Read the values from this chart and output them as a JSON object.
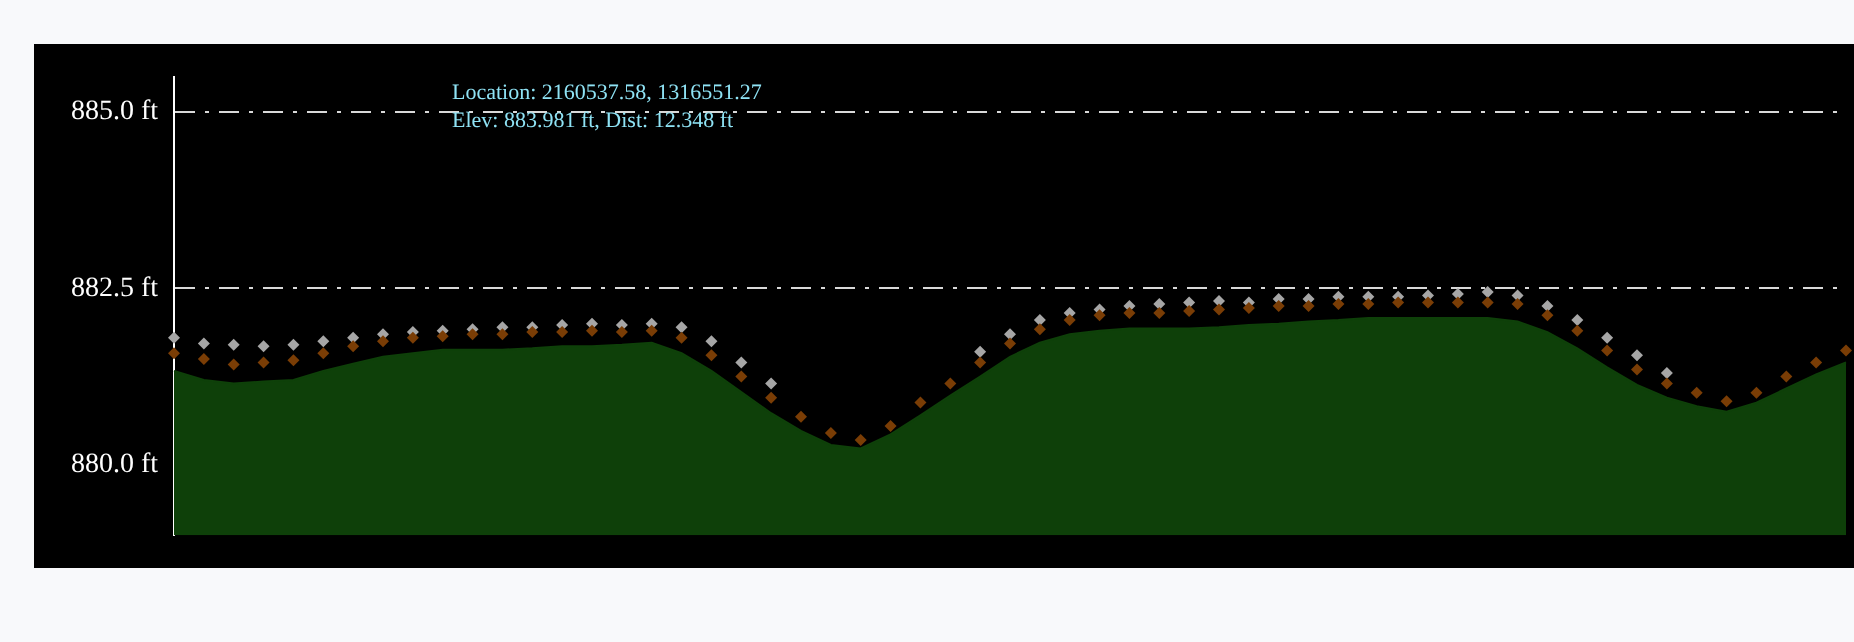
{
  "chart_data": {
    "type": "area",
    "categories": [
      null,
      null,
      null,
      null,
      null,
      null,
      null,
      null,
      null,
      null,
      null,
      null,
      null,
      null,
      null,
      null,
      null,
      null,
      null,
      null,
      null,
      null,
      null,
      null,
      null,
      null,
      null,
      null,
      null,
      null,
      null,
      null,
      null,
      null,
      null,
      null,
      null,
      null,
      null,
      null,
      null,
      null,
      null,
      null,
      null,
      null,
      null,
      null,
      null,
      null,
      null,
      null,
      null,
      null,
      null,
      null,
      null
    ],
    "series": [
      {
        "color": "#0e4009",
        "values": [
          881.33,
          881.2,
          881.15,
          881.18,
          881.2,
          881.33,
          881.43,
          881.53,
          881.58,
          881.63,
          881.63,
          881.63,
          881.65,
          881.68,
          881.68,
          881.7,
          881.73,
          881.58,
          881.33,
          881.03,
          880.73,
          880.48,
          880.28,
          880.23,
          880.43,
          880.7,
          880.98,
          881.25,
          881.53,
          881.73,
          881.85,
          881.9,
          881.93,
          881.93,
          881.93,
          881.95,
          881.98,
          882.0,
          882.03,
          882.05,
          882.08,
          882.08,
          882.08,
          882.08,
          882.08,
          882.03,
          881.88,
          881.65,
          881.38,
          881.13,
          880.95,
          880.83,
          880.75,
          880.88,
          881.08,
          881.28,
          881.45
        ]
      },
      {
        "type": "scatter",
        "marker": "diamond",
        "color": "#a6a6a6",
        "values": [
          881.8,
          881.72,
          881.7,
          881.68,
          881.7,
          881.75,
          881.8,
          881.85,
          881.88,
          881.9,
          881.92,
          881.95,
          881.95,
          881.98,
          882.0,
          881.98,
          882.0,
          881.95,
          881.75,
          881.45,
          881.15,
          null,
          null,
          null,
          null,
          null,
          null,
          881.6,
          881.85,
          882.05,
          882.15,
          882.2,
          882.25,
          882.28,
          882.3,
          882.32,
          882.3,
          882.35,
          882.35,
          882.38,
          882.38,
          882.38,
          882.4,
          882.42,
          882.45,
          882.4,
          882.25,
          882.05,
          881.8,
          881.55,
          881.3,
          null,
          null,
          null,
          null,
          null,
          null
        ]
      },
      {
        "type": "scatter",
        "marker": "diamond",
        "color": "#7a3d05",
        "values": [
          881.58,
          881.5,
          881.42,
          881.45,
          881.48,
          881.58,
          881.68,
          881.75,
          881.8,
          881.82,
          881.85,
          881.85,
          881.88,
          881.88,
          881.9,
          881.88,
          881.9,
          881.8,
          881.55,
          881.25,
          880.95,
          880.68,
          880.45,
          880.35,
          880.55,
          880.88,
          881.15,
          881.45,
          881.72,
          881.92,
          882.05,
          882.12,
          882.15,
          882.15,
          882.18,
          882.2,
          882.22,
          882.25,
          882.25,
          882.28,
          882.28,
          882.3,
          882.3,
          882.3,
          882.3,
          882.28,
          882.12,
          881.9,
          881.62,
          881.35,
          881.15,
          881.02,
          880.9,
          881.02,
          881.25,
          881.45,
          881.62
        ]
      }
    ],
    "ylim": [
      879,
      885.5
    ],
    "yticks": [
      {
        "value": 880,
        "label": "880.0 ft"
      },
      {
        "value": 882.5,
        "label": "882.5 ft"
      },
      {
        "value": 885,
        "label": "885.0 ft"
      }
    ],
    "grid": "y",
    "tick_labels": "y",
    "annotations": [
      "Location: 2160537.58, 1316551.27",
      "Elev: 883.981 ft, Dist: 12.348 ft"
    ]
  }
}
